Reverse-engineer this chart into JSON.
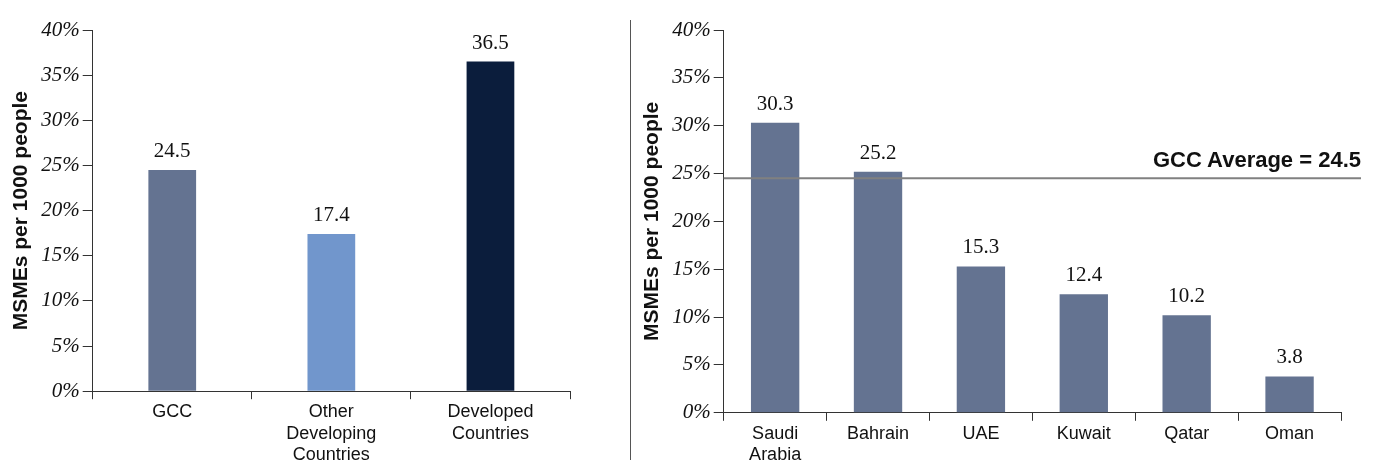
{
  "chart_data": [
    {
      "type": "bar",
      "ylabel": "MSMEs per 1000 people",
      "categories": [
        "GCC",
        "Other Developing Countries",
        "Developed Countries"
      ],
      "values": [
        24.5,
        17.4,
        36.5
      ],
      "colors": [
        "#647391",
        "#7196cc",
        "#0b1d3c"
      ],
      "ylim": [
        0,
        40
      ],
      "yticks": [
        {
          "value": 0,
          "label": "0%"
        },
        {
          "value": 5,
          "label": "5%"
        },
        {
          "value": 10,
          "label": "10%"
        },
        {
          "value": 15,
          "label": "15%"
        },
        {
          "value": 20,
          "label": "20%"
        },
        {
          "value": 25,
          "label": "25%"
        },
        {
          "value": 30,
          "label": "30%"
        },
        {
          "value": 35,
          "label": "35%"
        },
        {
          "value": 40,
          "label": "40%"
        }
      ],
      "data_labels": true,
      "grid": false,
      "legend": false
    },
    {
      "type": "bar",
      "ylabel": "MSMEs per 1000 people",
      "categories": [
        "Saudi Arabia",
        "Bahrain",
        "UAE",
        "Kuwait",
        "Qatar",
        "Oman"
      ],
      "values": [
        30.3,
        25.2,
        15.3,
        12.4,
        10.2,
        3.8
      ],
      "color": "#647391",
      "ylim": [
        0,
        40
      ],
      "yticks": [
        {
          "value": 0,
          "label": "0%"
        },
        {
          "value": 5,
          "label": "5%"
        },
        {
          "value": 10,
          "label": "10%"
        },
        {
          "value": 15,
          "label": "15%"
        },
        {
          "value": 20,
          "label": "20%"
        },
        {
          "value": 25,
          "label": "25%"
        },
        {
          "value": 30,
          "label": "30%"
        },
        {
          "value": 35,
          "label": "35%"
        },
        {
          "value": 40,
          "label": "40%"
        }
      ],
      "ref_lines": [
        {
          "axis": "y",
          "value": 24.5,
          "label": "GCC Average = 24.5",
          "color": "#808080"
        }
      ],
      "data_labels": true,
      "grid": false,
      "legend": false
    }
  ]
}
